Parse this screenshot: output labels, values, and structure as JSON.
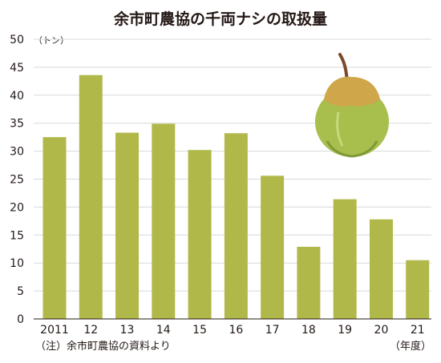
{
  "chart_data": {
    "type": "bar",
    "title": "余市町農協の千両ナシの取扱量",
    "unit_label": "（トン）",
    "xlabel": "",
    "ylabel": "",
    "categories": [
      "2011",
      "12",
      "13",
      "14",
      "15",
      "16",
      "17",
      "18",
      "19",
      "20",
      "21"
    ],
    "x_axis_suffix": "（年度）",
    "values": [
      32.5,
      43.6,
      33.3,
      34.9,
      30.2,
      33.2,
      25.6,
      12.9,
      21.4,
      17.8,
      10.5
    ],
    "ylim": [
      0,
      50
    ],
    "yticks": [
      0,
      5,
      10,
      15,
      20,
      25,
      30,
      35,
      40,
      45,
      50
    ],
    "grid": true,
    "legend": "none",
    "source_note": "（注）余市町農協の資料より",
    "colors": {
      "bar": "#b1b84a",
      "grid": "#d9d9d9",
      "text": "#231815"
    }
  }
}
